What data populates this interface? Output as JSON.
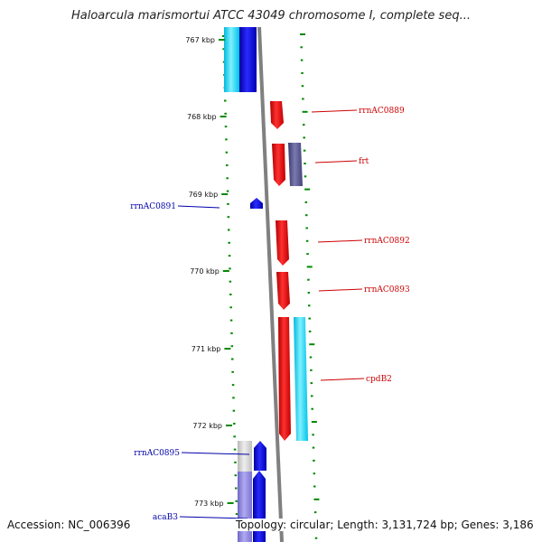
{
  "title": "Haloarcula marismortui ATCC 43049 chromosome I, complete seq...",
  "kbp_ticks": [
    "767 kbp",
    "768 kbp",
    "769 kbp",
    "770 kbp",
    "771 kbp",
    "772 kbp",
    "773 kbp"
  ],
  "forward_labels": [
    "rrnAC0889",
    "frt",
    "rrnAC0892",
    "rrnAC0893",
    "cpdB2"
  ],
  "reverse_labels": [
    "rrnAC0891",
    "rrnAC0895",
    "acaB3"
  ],
  "footer": {
    "accession": "Accession: NC_006396",
    "topology": "Topology: circular; Length: 3,131,724 bp; Genes: 3,186"
  },
  "colors": {
    "forward_gene": "#ee0000",
    "reverse_gene": "#0000ee",
    "cyan_feature": "#00ccee",
    "purple_feature": "#55558a",
    "light_purple_feature": "#8c84d8",
    "grey_feature": "#c8c8c8",
    "backbone": "#808080",
    "tick": "#008800",
    "forward_label": "#cc0000",
    "reverse_label": "#0000aa"
  }
}
